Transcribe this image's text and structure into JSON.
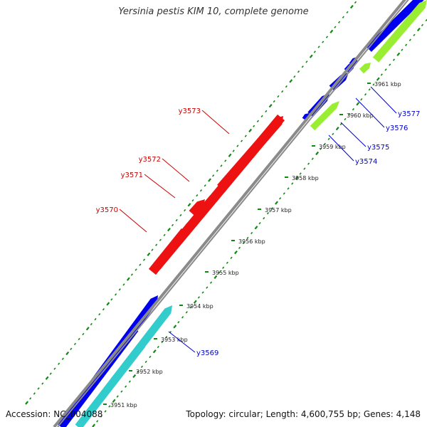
{
  "title": "Yersinia pestis KIM 10, complete genome",
  "accession": "Accession: NC_004088",
  "topology": "Topology: circular; Length: 4,600,755 bp; Genes: 4,148",
  "colors": {
    "backbone": "#8a8a8a",
    "forward_cds": "#0000ee",
    "forward_feature": "#99ee33",
    "reverse_cds": "#ee1111",
    "reverse_feature": "#33cccc",
    "tick_marks": "#118811",
    "forward_label": "#0000cc",
    "reverse_label": "#cc0000"
  },
  "ticks": [
    "3951 kbp",
    "3952 kbp",
    "3953 kbp",
    "3954 kbp",
    "3955 kbp",
    "3956 kbp",
    "3957 kbp",
    "3958 kbp",
    "3959 kbp",
    "3960 kbp",
    "3961 kbp"
  ],
  "genes": {
    "forward": [
      "y3569",
      "y3574",
      "y3575",
      "y3576",
      "y3577"
    ],
    "reverse": [
      "y3570",
      "y3571",
      "y3572",
      "y3573"
    ]
  }
}
